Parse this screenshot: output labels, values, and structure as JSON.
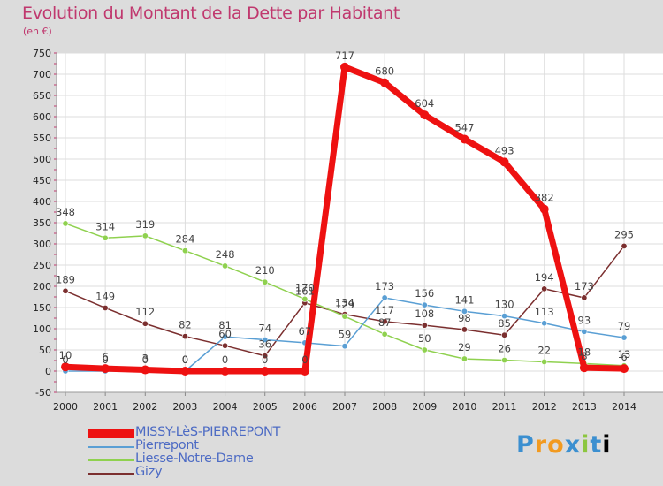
{
  "chart_data": {
    "type": "line",
    "title": "Evolution du Montant de la Dette par Habitant",
    "subtitle": "(en €)",
    "x": [
      "2000",
      "2001",
      "2002",
      "2003",
      "2004",
      "2005",
      "2006",
      "2007",
      "2008",
      "2009",
      "2010",
      "2011",
      "2012",
      "2013",
      "2014"
    ],
    "ylim": [
      -50,
      750
    ],
    "yticks": [
      -50,
      0,
      50,
      100,
      150,
      200,
      250,
      300,
      350,
      400,
      450,
      500,
      550,
      600,
      650,
      700,
      750
    ],
    "grid": true,
    "legend_position": "bottom-left",
    "series": [
      {
        "name": "MISSY-LèS-PIERREPONT",
        "color": "#ee1111",
        "values": [
          10,
          6,
          3,
          0,
          0,
          0,
          0,
          717,
          680,
          604,
          547,
          493,
          382,
          8,
          6
        ],
        "labels": [
          "10",
          "6",
          "3",
          "0",
          "0",
          "0",
          "0",
          "717",
          "680",
          "604",
          "547",
          "493",
          "382",
          "8",
          "6"
        ]
      },
      {
        "name": "Pierrepont",
        "color": "#5a9fd4",
        "values": [
          0,
          0,
          0,
          0,
          81,
          74,
          67,
          59,
          173,
          156,
          141,
          130,
          113,
          93,
          79
        ],
        "labels": [
          "0",
          "0",
          "0",
          "0",
          "81",
          "74",
          "67",
          "59",
          "173",
          "156",
          "141",
          "130",
          "113",
          "93",
          "79"
        ]
      },
      {
        "name": "Liesse-Notre-Dame",
        "color": "#8fd14f",
        "values": [
          348,
          314,
          319,
          284,
          248,
          210,
          170,
          129,
          87,
          50,
          29,
          26,
          22,
          18,
          13
        ],
        "labels": [
          "348",
          "314",
          "319",
          "284",
          "248",
          "210",
          "170",
          "129",
          "87",
          "50",
          "29",
          "26",
          "22",
          "18",
          "13"
        ]
      },
      {
        "name": "Gizy",
        "color": "#7b2f2f",
        "values": [
          189,
          149,
          112,
          82,
          60,
          36,
          161,
          134,
          117,
          108,
          98,
          85,
          194,
          173,
          295
        ],
        "labels": [
          "189",
          "149",
          "112",
          "82",
          "60",
          "36",
          "161",
          "134",
          "117",
          "108",
          "98",
          "85",
          "194",
          "173",
          "295"
        ]
      }
    ]
  },
  "brand": {
    "letters": [
      "P",
      "r",
      "o",
      "x",
      "i",
      "t",
      "i"
    ]
  }
}
